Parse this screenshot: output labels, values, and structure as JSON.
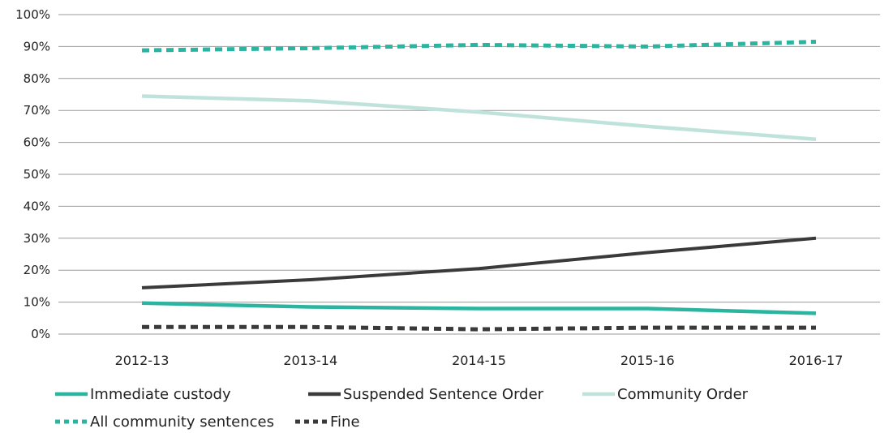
{
  "chart_data": {
    "type": "line",
    "categories": [
      "2012-13",
      "2013-14",
      "2014-15",
      "2015-16",
      "2016-17"
    ],
    "y_ticks": [
      "0%",
      "10%",
      "20%",
      "30%",
      "40%",
      "50%",
      "60%",
      "70%",
      "80%",
      "90%",
      "100%"
    ],
    "ylim": [
      0,
      100
    ],
    "grid": true,
    "legend_position": "bottom",
    "series": [
      {
        "name": "Immediate custody",
        "values": [
          9.7,
          8.5,
          8.0,
          8.0,
          6.5
        ],
        "color": "#2bb5a0",
        "style": "solid",
        "width": 4.5
      },
      {
        "name": "Suspended Sentence Order",
        "values": [
          14.5,
          17.0,
          20.5,
          25.5,
          30.0
        ],
        "color": "#3a3a3a",
        "style": "solid",
        "width": 4
      },
      {
        "name": "Community Order",
        "values": [
          74.5,
          73.0,
          69.5,
          65.0,
          61.0
        ],
        "color": "#bfe3da",
        "style": "solid",
        "width": 4.5
      },
      {
        "name": "All community sentences",
        "values": [
          88.8,
          89.5,
          90.5,
          90.0,
          91.5
        ],
        "color": "#2bb5a0",
        "style": "dashed",
        "width": 5
      },
      {
        "name": "Fine",
        "values": [
          2.2,
          2.2,
          1.5,
          2.0,
          2.0
        ],
        "color": "#3a3a3a",
        "style": "dashed",
        "width": 5
      }
    ]
  }
}
